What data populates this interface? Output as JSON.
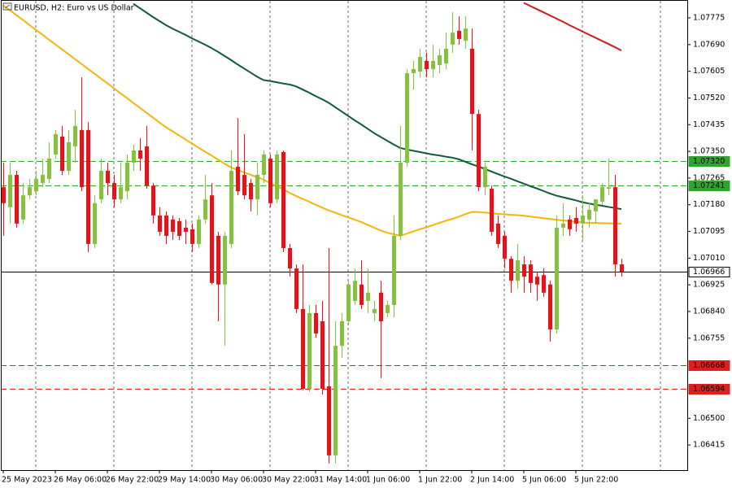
{
  "chart_data": {
    "type": "candlestick",
    "title": "EURUSD, H2:  Euro vs US Dollar",
    "categories": [
      "25 May 2023",
      null,
      null,
      null,
      null,
      null,
      null,
      null,
      "26 May 06:00",
      null,
      null,
      null,
      null,
      null,
      null,
      null,
      "26 May 22:00",
      null,
      null,
      null,
      null,
      null,
      null,
      null,
      "29 May 14:00",
      null,
      null,
      null,
      null,
      null,
      null,
      null,
      "30 May 06:00",
      null,
      null,
      null,
      null,
      null,
      null,
      null,
      "30 May 22:00",
      null,
      null,
      null,
      null,
      null,
      null,
      null,
      "31 May 14:00",
      null,
      null,
      null,
      null,
      null,
      null,
      null,
      "1 Jun 06:00",
      null,
      null,
      null,
      null,
      null,
      null,
      null,
      "1 Jun 22:00",
      null,
      null,
      null,
      null,
      null,
      null,
      null,
      "2 Jun 14:00",
      null,
      null,
      null,
      null,
      null,
      null,
      null,
      "5 Jun 06:00",
      null,
      null,
      null,
      null,
      null,
      null,
      null,
      "5 Jun 22:00",
      null,
      null,
      null,
      null,
      null,
      null,
      null
    ],
    "open": [
      1.07236,
      1.07172,
      1.07275,
      1.07133,
      1.0721,
      1.07223,
      1.07249,
      1.07262,
      1.0734,
      1.07397,
      1.07288,
      1.07366,
      1.07418,
      1.07418,
      1.07055,
      1.07197,
      1.07288,
      1.07249,
      1.07197,
      1.07223,
      1.07314,
      1.07353,
      1.07366,
      1.07241,
      1.07146,
      1.07146,
      1.07133,
      1.07128,
      1.07107,
      1.07102,
      1.07055,
      1.07133,
      1.0721,
      1.07081,
      1.06926,
      1.07055,
      1.07301,
      1.07275,
      1.07249,
      1.07197,
      1.07275,
      1.07327,
      1.07197,
      1.07348,
      1.07042,
      1.06977,
      1.06848,
      1.06594,
      1.06835,
      1.06809,
      1.06602,
      1.06382,
      1.06731,
      1.06809,
      1.06874,
      1.06926,
      1.06874,
      1.06835,
      1.069,
      1.06835,
      1.06861,
      1.07081,
      1.07314,
      1.07599,
      1.07604,
      1.07638,
      1.07612,
      1.07625,
      1.0763,
      1.0769,
      1.07734,
      1.07702,
      1.07677,
      1.07469,
      1.07236,
      1.07231,
      1.0712,
      1.07081,
      1.07008,
      1.06938,
      1.0699,
      1.0699,
      1.06951,
      1.06956,
      1.06926,
      1.06783,
      1.07107,
      1.07133,
      1.07138,
      1.0712,
      1.07133,
      1.07159,
      1.0719,
      1.07231,
      1.07236,
      1.0699
    ],
    "high": [
      1.07314,
      1.07314,
      1.07288,
      1.07249,
      1.07262,
      1.07288,
      1.07327,
      1.07379,
      1.07418,
      1.07431,
      1.07418,
      1.07482,
      1.07586,
      1.07443,
      1.0721,
      1.07327,
      1.07314,
      1.07275,
      1.07314,
      1.0734,
      1.07371,
      1.07392,
      1.07431,
      1.07249,
      1.07172,
      1.07159,
      1.07146,
      1.07138,
      1.07133,
      1.0712,
      1.07146,
      1.07275,
      1.07249,
      1.07094,
      1.07094,
      1.07353,
      1.07456,
      1.07405,
      1.07262,
      1.07314,
      1.07353,
      1.0734,
      1.07353,
      1.07353,
      1.07055,
      1.0699,
      1.0699,
      1.06861,
      1.06861,
      1.06874,
      1.07042,
      1.06809,
      1.06835,
      1.06938,
      1.06977,
      1.07003,
      1.06977,
      1.06874,
      1.06938,
      1.06874,
      1.07146,
      1.07431,
      1.07612,
      1.07638,
      1.07677,
      1.07664,
      1.0769,
      1.07677,
      1.07728,
      1.07793,
      1.0778,
      1.0778,
      1.07741,
      1.07482,
      1.07314,
      1.07241,
      1.07146,
      1.07094,
      1.07016,
      1.07055,
      1.07016,
      1.07003,
      1.06964,
      1.06977,
      1.06938,
      1.07146,
      1.07185,
      1.07146,
      1.07172,
      1.0721,
      1.07185,
      1.07197,
      1.07249,
      1.07327,
      1.07275,
      1.07008
    ],
    "low": [
      1.07081,
      1.0712,
      1.07107,
      1.0712,
      1.07197,
      1.0721,
      1.07236,
      1.07249,
      1.07327,
      1.07275,
      1.07275,
      1.07314,
      1.07223,
      1.07029,
      1.07042,
      1.07185,
      1.0721,
      1.07172,
      1.07185,
      1.07197,
      1.07288,
      1.07288,
      1.07231,
      1.0712,
      1.07081,
      1.07055,
      1.07068,
      1.07068,
      1.07055,
      1.07029,
      1.07042,
      1.0712,
      1.06926,
      1.06809,
      1.06731,
      1.07042,
      1.0721,
      1.07197,
      1.07159,
      1.07146,
      1.07249,
      1.07172,
      1.07185,
      1.07029,
      1.06951,
      1.06835,
      1.06589,
      1.06584,
      1.06757,
      1.06576,
      1.06356,
      1.06356,
      1.06692,
      1.06796,
      1.06861,
      1.06848,
      1.06835,
      1.06809,
      1.06628,
      1.06822,
      1.06822,
      1.07068,
      1.07301,
      1.07547,
      1.07586,
      1.07586,
      1.07586,
      1.07599,
      1.07612,
      1.07664,
      1.0769,
      1.07677,
      1.07353,
      1.07223,
      1.0721,
      1.07081,
      1.07042,
      1.06977,
      1.069,
      1.06913,
      1.069,
      1.069,
      1.06874,
      1.06887,
      1.06744,
      1.0677,
      1.07081,
      1.07081,
      1.07094,
      1.07068,
      1.07107,
      1.0712,
      1.07179,
      1.0721,
      1.06951,
      1.06951
    ],
    "close": [
      1.07185,
      1.07275,
      1.0712,
      1.0721,
      1.07236,
      1.07262,
      1.07275,
      1.07327,
      1.07405,
      1.07288,
      1.07379,
      1.07431,
      1.07236,
      1.07055,
      1.07185,
      1.07288,
      1.07249,
      1.07197,
      1.07236,
      1.07314,
      1.07353,
      1.07327,
      1.07241,
      1.07146,
      1.07094,
      1.07081,
      1.07094,
      1.07081,
      1.07094,
      1.07055,
      1.07133,
      1.07197,
      1.06931,
      1.06926,
      1.07081,
      1.07288,
      1.07223,
      1.0721,
      1.07197,
      1.07275,
      1.0734,
      1.07185,
      1.0734,
      1.07042,
      1.06977,
      1.06848,
      1.06594,
      1.06835,
      1.0677,
      1.06594,
      1.06382,
      1.06731,
      1.06809,
      1.06926,
      1.06938,
      1.06861,
      1.069,
      1.06848,
      1.06809,
      1.06861,
      1.07081,
      1.07314,
      1.07599,
      1.07612,
      1.07651,
      1.07612,
      1.07638,
      1.07656,
      1.07677,
      1.07728,
      1.07708,
      1.07741,
      1.07469,
      1.07236,
      1.07301,
      1.07094,
      1.07055,
      1.07008,
      1.06938,
      1.07003,
      1.06951,
      1.06931,
      1.06926,
      1.069,
      1.06783,
      1.07107,
      1.0712,
      1.07102,
      1.0712,
      1.07146,
      1.07164,
      1.07197,
      1.07236,
      1.07236,
      1.0699,
      1.06966
    ],
    "up_color": "#86c240",
    "down_color": "#e4141c",
    "series": [
      {
        "color": "#f5b50a",
        "values": [
          1.07814,
          1.078,
          1.07784,
          1.07769,
          1.07753,
          1.07737,
          1.07722,
          1.07706,
          1.07691,
          1.07675,
          1.0766,
          1.07644,
          1.07629,
          1.07613,
          1.07598,
          1.07582,
          1.07567,
          1.07551,
          1.07535,
          1.0752,
          1.07504,
          1.07489,
          1.07473,
          1.07458,
          1.07442,
          1.07427,
          1.07414,
          1.07401,
          1.07388,
          1.07375,
          1.07362,
          1.07349,
          1.07337,
          1.07324,
          1.07311,
          1.07299,
          1.07291,
          1.07283,
          1.07276,
          1.07268,
          1.0726,
          1.07249,
          1.07239,
          1.07229,
          1.07218,
          1.07208,
          1.07199,
          1.0719,
          1.0718,
          1.07171,
          1.07162,
          1.07155,
          1.07147,
          1.0714,
          1.07133,
          1.07125,
          1.07116,
          1.07107,
          1.07098,
          1.07091,
          1.07086,
          1.07081,
          1.07088,
          1.07095,
          1.07102,
          1.07108,
          1.07115,
          1.07122,
          1.07129,
          1.07135,
          1.07142,
          1.0715,
          1.07157,
          1.07157,
          1.07155,
          1.07153,
          1.07151,
          1.0715,
          1.07148,
          1.07147,
          1.07145,
          1.07142,
          1.0714,
          1.07137,
          1.07135,
          1.07132,
          1.0713,
          1.07128,
          1.07126,
          1.07124,
          1.07122,
          1.07122,
          1.07121,
          1.07121,
          1.0712,
          1.0712
        ]
      },
      {
        "color": "#0f5a3c",
        "values": [
          null,
          null,
          null,
          null,
          null,
          null,
          null,
          null,
          null,
          null,
          null,
          null,
          null,
          null,
          null,
          null,
          null,
          null,
          null,
          null,
          1.0782,
          1.07806,
          1.07792,
          1.07778,
          1.07765,
          1.07752,
          1.07741,
          1.07731,
          1.07721,
          1.0771,
          1.077,
          1.0769,
          1.07679,
          1.07667,
          1.07654,
          1.07641,
          1.07627,
          1.07614,
          1.07601,
          1.07588,
          1.07577,
          1.07574,
          1.0757,
          1.07566,
          1.07563,
          1.07557,
          1.07547,
          1.07537,
          1.07526,
          1.07516,
          1.07505,
          1.07491,
          1.07477,
          1.07463,
          1.07449,
          1.07436,
          1.07422,
          1.07408,
          1.07396,
          1.07384,
          1.07372,
          1.07361,
          1.07356,
          1.07352,
          1.07348,
          1.07344,
          1.0734,
          1.07337,
          1.07333,
          1.0733,
          1.07325,
          1.07317,
          1.07309,
          1.07302,
          1.07294,
          1.07286,
          1.07278,
          1.0727,
          1.07263,
          1.07255,
          1.07247,
          1.07239,
          1.07232,
          1.07224,
          1.07216,
          1.07209,
          1.07204,
          1.07199,
          1.07194,
          1.07188,
          1.07184,
          1.0718,
          1.07177,
          1.07173,
          1.0717,
          1.07166
        ]
      },
      {
        "color": "#d01c1c",
        "values": [
          null,
          null,
          null,
          null,
          null,
          null,
          null,
          null,
          null,
          null,
          null,
          null,
          null,
          null,
          null,
          null,
          null,
          null,
          null,
          null,
          null,
          null,
          null,
          null,
          null,
          null,
          null,
          null,
          null,
          null,
          null,
          null,
          null,
          null,
          null,
          null,
          null,
          null,
          null,
          null,
          null,
          null,
          null,
          null,
          null,
          null,
          null,
          null,
          null,
          null,
          null,
          null,
          null,
          null,
          null,
          null,
          null,
          null,
          null,
          null,
          null,
          null,
          null,
          null,
          null,
          null,
          null,
          null,
          null,
          null,
          null,
          null,
          null,
          null,
          null,
          null,
          null,
          null,
          null,
          null,
          1.07823,
          1.07813,
          1.07803,
          1.07793,
          1.07783,
          1.07773,
          1.07763,
          1.07752,
          1.07742,
          1.07732,
          1.07722,
          1.07712,
          1.07702,
          1.07692,
          1.07682,
          1.07671
        ]
      }
    ],
    "levels": [
      {
        "value": 1.0732,
        "label": "1.07320",
        "color": "#2ea52e",
        "style": "dashed"
      },
      {
        "value": 1.07241,
        "label": "1.07241",
        "color": "#2ea52e",
        "style": "dashed"
      },
      {
        "value": 1.06668,
        "label": "1.06668",
        "color": "#e01e1e",
        "style": "dashed"
      },
      {
        "value": 1.06594,
        "label": "1.06594",
        "color": "#e01e1e",
        "style": "dashed"
      },
      {
        "value": 1.06966,
        "label": "1.06966",
        "color": "#000000",
        "style": "solid"
      }
    ],
    "ylim": [
      1.06335,
      1.07832
    ],
    "yticks": [
      {
        "value": 1.07775,
        "label": "1.07775"
      },
      {
        "value": 1.0769,
        "label": "1.07690"
      },
      {
        "value": 1.07605,
        "label": "1.07605"
      },
      {
        "value": 1.0752,
        "label": "1.07520"
      },
      {
        "value": 1.07435,
        "label": "1.07435"
      },
      {
        "value": 1.0735,
        "label": "1.07350"
      },
      {
        "value": 1.07265,
        "label": "1.07265"
      },
      {
        "value": 1.0718,
        "label": "1.07180"
      },
      {
        "value": 1.07095,
        "label": "1.07095"
      },
      {
        "value": 1.0701,
        "label": "1.07010"
      },
      {
        "value": 1.06925,
        "label": "1.06925"
      },
      {
        "value": 1.0684,
        "label": "1.06840"
      },
      {
        "value": 1.06755,
        "label": "1.06755"
      },
      {
        "value": 1.065,
        "label": "1.06500"
      },
      {
        "value": 1.06415,
        "label": "1.06415"
      }
    ],
    "grid": true
  }
}
